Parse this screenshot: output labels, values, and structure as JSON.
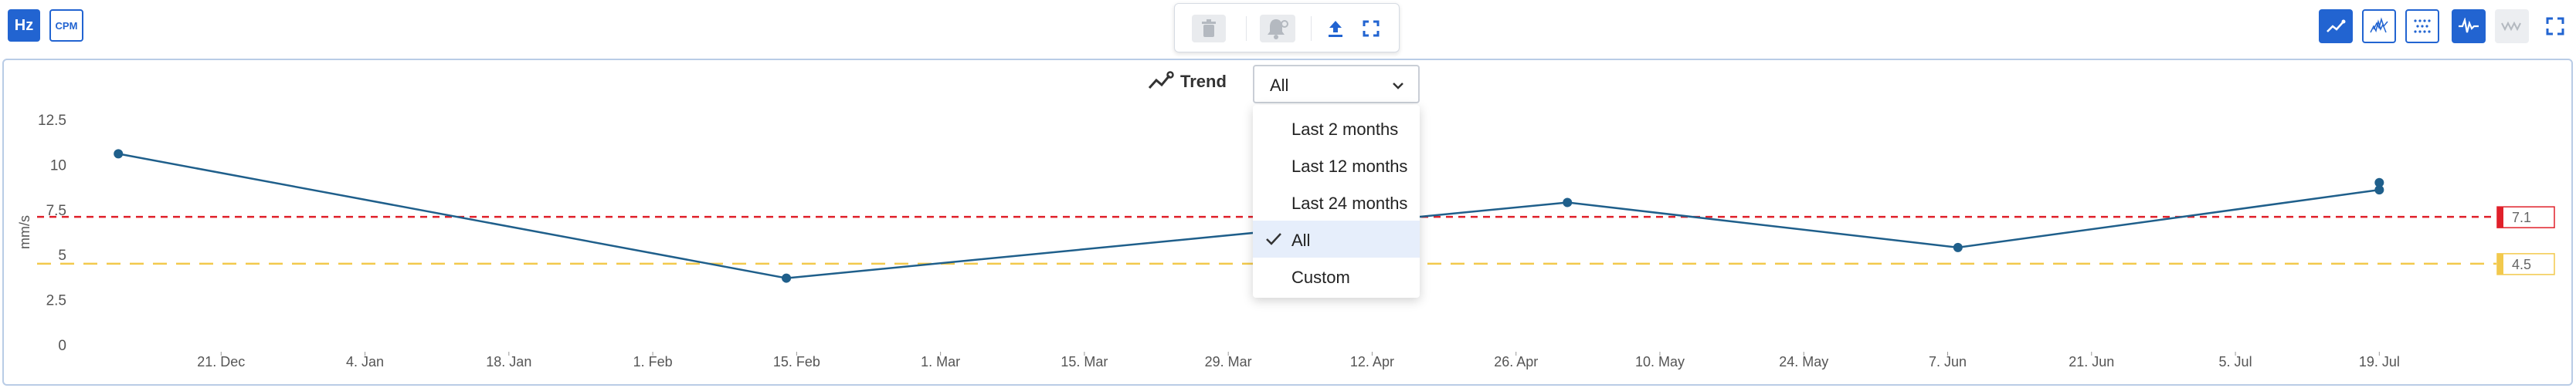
{
  "units": {
    "hz_label": "Hz",
    "cpm_label": "CPM"
  },
  "toolbar": {
    "delete_icon": "trash-icon",
    "alarm_icon": "bell-settings-icon",
    "upload_icon": "upload-icon",
    "fullscreen_icon": "expand-icon"
  },
  "right_toolbar": {
    "icons": [
      "trend-chart-icon",
      "waterfall-icon",
      "scatter-icon",
      "waveform-icon",
      "spectrum-icon",
      "fullscreen-icon"
    ]
  },
  "trend": {
    "label": "Trend",
    "selected": "All",
    "options": [
      "Last 2 months",
      "Last 12 months",
      "Last 24 months",
      "All",
      "Custom"
    ]
  },
  "colors": {
    "accent": "#2264d1",
    "line": "#1f5f8b",
    "alarm": "#e0202a",
    "warning": "#f2c94c"
  },
  "chart_data": {
    "type": "line",
    "ylabel": "mm/s",
    "ylim": [
      0,
      12.5
    ],
    "yticks": [
      "0",
      "2.5",
      "5",
      "7.5",
      "10",
      "12.5"
    ],
    "xticks": [
      "21. Dec",
      "4. Jan",
      "18. Jan",
      "1. Feb",
      "15. Feb",
      "1. Mar",
      "15. Mar",
      "29. Mar",
      "12. Apr",
      "26. Apr",
      "10. May",
      "24. May",
      "7. Jun",
      "21. Jun",
      "5. Jul",
      "19. Jul"
    ],
    "xlim": [
      "2020-12-07",
      "2021-07-31"
    ],
    "series": [
      {
        "x": [
          "2020-12-11",
          "2021-02-14",
          "2021-05-01",
          "2021-06-08",
          "2021-07-19",
          "2021-07-19"
        ],
        "values": [
          10.6,
          3.7,
          7.9,
          5.4,
          8.6,
          9.0
        ]
      }
    ],
    "thresholds": [
      {
        "label": "7.1",
        "value": 7.1,
        "color": "#e0202a"
      },
      {
        "label": "4.5",
        "value": 4.5,
        "color": "#f2c94c"
      }
    ]
  }
}
